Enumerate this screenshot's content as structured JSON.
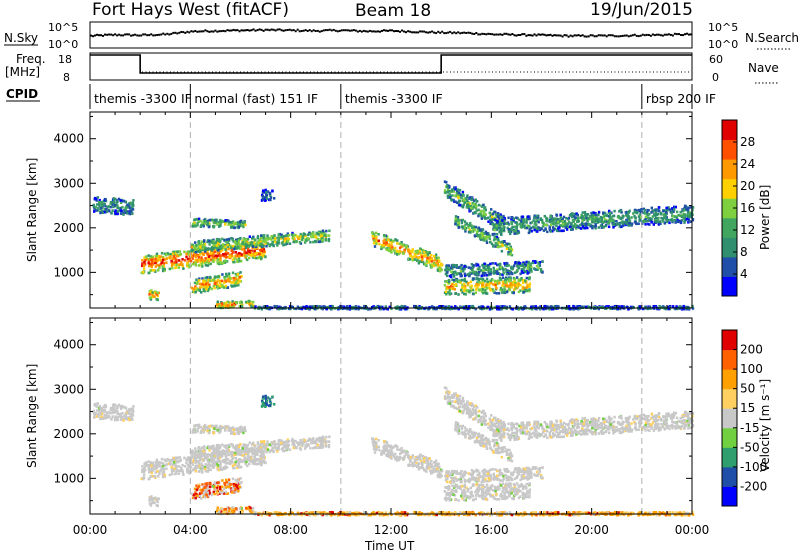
{
  "header": {
    "title": "Fort Hays West (fitACF)",
    "beam": "Beam 18",
    "date": "19/Jun/2015"
  },
  "nsky_panel": {
    "left_label": "N.Sky",
    "left_ticks": [
      "10^5",
      "10^0"
    ],
    "right_label": "N.Search",
    "right_ticks": [
      "10^5",
      "10^0"
    ]
  },
  "freq_panel": {
    "left_label_1": "Freq.",
    "left_label_2": "[MHz]",
    "left_ticks": [
      "18",
      "8"
    ],
    "right_label": "Nave",
    "right_ticks": [
      "60",
      "0"
    ]
  },
  "cpid_panel": {
    "label": "CPID",
    "segments": [
      {
        "text": "themis -3300 IF",
        "start_h": 0.0
      },
      {
        "text": "normal (fast) 151 IF",
        "start_h": 4.0
      },
      {
        "text": "themis -3300 IF",
        "start_h": 10.0
      },
      {
        "text": "rbsp 200 IF",
        "start_h": 22.0
      }
    ]
  },
  "colors": {
    "power": [
      "#0000ff",
      "#1f4fa8",
      "#2f8f6f",
      "#3fa55f",
      "#7fd040",
      "#ffd000",
      "#ff9900",
      "#ff5000",
      "#e00000"
    ],
    "velocity": [
      "#e00000",
      "#ff6000",
      "#ffa000",
      "#ffd060",
      "#c8c8c8",
      "#70d040",
      "#2f9f6f",
      "#1f4fa8",
      "#0000ff"
    ]
  },
  "chart_data": [
    {
      "type": "heatmap",
      "name": "power",
      "ylabel": "Slant Range [km]",
      "xlabel": "Time UT",
      "x_ticks": [
        "00:00",
        "04:00",
        "08:00",
        "12:00",
        "16:00",
        "20:00",
        "00:00"
      ],
      "x_range_hours": [
        0,
        24
      ],
      "ylim": [
        200,
        4600
      ],
      "y_ticks": [
        1000,
        2000,
        3000,
        4000
      ],
      "colorbar_label": "Power [dB]",
      "colorbar_ticks": [
        "28",
        "24",
        "20",
        "16",
        "12",
        "8",
        "4"
      ],
      "echo_bands": [
        {
          "t0": 0.1,
          "t1": 1.7,
          "r0": 2550,
          "r1": 2480,
          "w": 220,
          "level": 0.25
        },
        {
          "t0": 2.0,
          "t1": 7.0,
          "r0": 1200,
          "r1": 1550,
          "w": 260,
          "level": 0.7
        },
        {
          "t0": 4.0,
          "t1": 9.5,
          "r0": 1600,
          "r1": 1850,
          "w": 160,
          "level": 0.45
        },
        {
          "t0": 4.0,
          "t1": 6.2,
          "r0": 2150,
          "r1": 2100,
          "w": 110,
          "level": 0.4
        },
        {
          "t0": 4.0,
          "t1": 6.0,
          "r0": 700,
          "r1": 900,
          "w": 200,
          "level": 0.6
        },
        {
          "t0": 5.0,
          "t1": 6.5,
          "r0": 300,
          "r1": 320,
          "w": 90,
          "level": 0.65
        },
        {
          "t0": 2.3,
          "t1": 2.7,
          "r0": 520,
          "r1": 520,
          "w": 140,
          "level": 0.6
        },
        {
          "t0": 6.8,
          "t1": 7.3,
          "r0": 2750,
          "r1": 2800,
          "w": 160,
          "level": 0.2
        },
        {
          "t0": 11.2,
          "t1": 14.0,
          "r0": 1800,
          "r1": 1200,
          "w": 220,
          "level": 0.6
        },
        {
          "t0": 14.1,
          "t1": 16.5,
          "r0": 2900,
          "r1": 2100,
          "w": 220,
          "level": 0.35
        },
        {
          "t0": 14.5,
          "t1": 16.8,
          "r0": 2200,
          "r1": 1500,
          "w": 160,
          "level": 0.4
        },
        {
          "t0": 16.0,
          "t1": 24.0,
          "r0": 2050,
          "r1": 2350,
          "w": 240,
          "level": 0.3
        },
        {
          "t0": 14.1,
          "t1": 17.5,
          "r0": 700,
          "r1": 750,
          "w": 220,
          "level": 0.55
        },
        {
          "t0": 14.1,
          "t1": 18.0,
          "r0": 1050,
          "r1": 1150,
          "w": 170,
          "level": 0.3
        },
        {
          "t0": 6.5,
          "t1": 24.0,
          "r0": 230,
          "r1": 230,
          "w": 50,
          "level": 0.2
        }
      ]
    },
    {
      "type": "heatmap",
      "name": "velocity",
      "ylabel": "Slant Range [km]",
      "xlabel": "Time UT",
      "x_ticks": [
        "00:00",
        "04:00",
        "08:00",
        "12:00",
        "16:00",
        "20:00",
        "00:00"
      ],
      "x_range_hours": [
        0,
        24
      ],
      "ylim": [
        200,
        4600
      ],
      "y_ticks": [
        1000,
        2000,
        3000,
        4000
      ],
      "colorbar_label": "Velocity [m s⁻¹]",
      "colorbar_ticks": [
        "200",
        "100",
        "50",
        "15",
        "-15",
        "-50",
        "-100",
        "-200"
      ]
    },
    {
      "type": "line",
      "name": "n_sky",
      "x_range_hours": [
        0,
        24
      ],
      "samples": [
        0.55,
        0.6,
        0.58,
        0.62,
        0.75,
        0.78,
        0.8,
        0.82,
        0.8,
        0.78,
        0.8,
        0.76,
        0.78,
        0.74,
        0.7,
        0.68,
        0.62,
        0.6,
        0.58,
        0.55,
        0.55,
        0.56,
        0.58,
        0.6,
        0.62
      ]
    },
    {
      "type": "line",
      "name": "frequency_mhz",
      "steps": [
        {
          "t0": 0.0,
          "t1": 2.0,
          "value": 18
        },
        {
          "t0": 2.0,
          "t1": 14.0,
          "value": 10.5
        },
        {
          "t0": 14.0,
          "t1": 24.0,
          "value": 18
        }
      ]
    }
  ],
  "xlabel": "Time UT"
}
